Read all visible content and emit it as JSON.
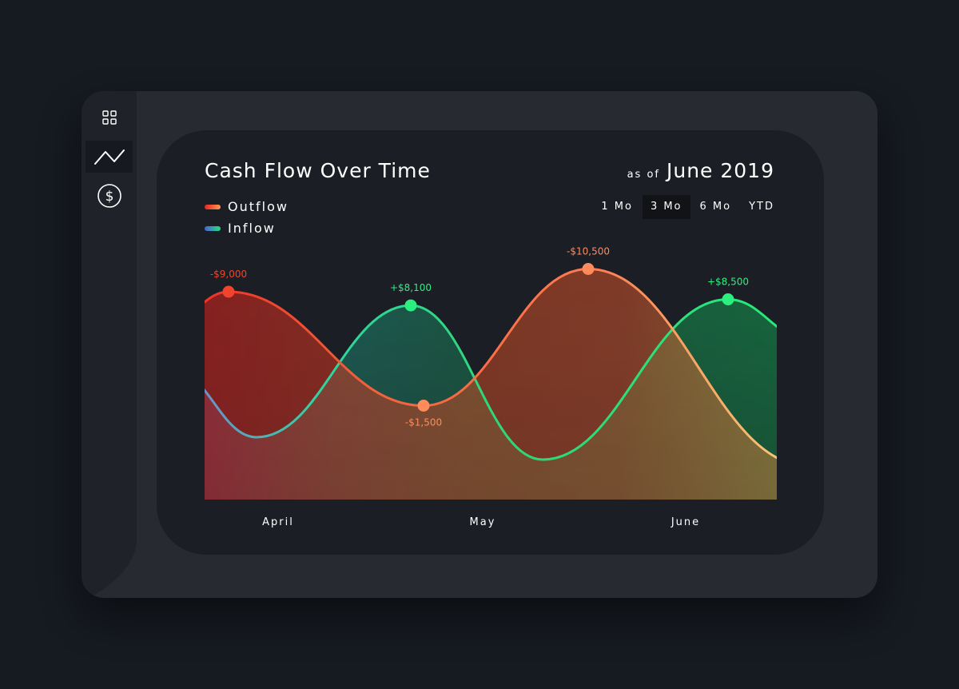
{
  "nav": {
    "items": [
      {
        "name": "dashboard-icon",
        "active": false
      },
      {
        "name": "trend-chart-icon",
        "active": true
      },
      {
        "name": "dollar-icon",
        "active": false
      }
    ]
  },
  "header": {
    "title": "Cash Flow Over Time",
    "as_of_label": "as of",
    "as_of_date": "June 2019"
  },
  "legend": {
    "outflow": "Outflow",
    "inflow": "Inflow"
  },
  "ranges": {
    "items": [
      "1 Mo",
      "3 Mo",
      "6 Mo",
      "YTD"
    ],
    "selected": "3 Mo"
  },
  "colors": {
    "outflow": "#f0462e",
    "outflow_end": "#ff7a52",
    "inflow": "#21e67f",
    "inflow_start": "#7a73c8",
    "label_red": "#f0452c",
    "label_orange": "#ff8a5c",
    "label_green": "#2bf07f"
  },
  "chart_data": {
    "type": "area",
    "categories": [
      "April",
      "May",
      "June"
    ],
    "series": [
      {
        "name": "Outflow",
        "points": [
          {
            "x": "April",
            "value": -9000,
            "label": "-$9,000"
          },
          {
            "x": "May",
            "value": -1500,
            "label": "-$1,500"
          },
          {
            "x": "June",
            "value": -10500,
            "label": "-$10,500"
          }
        ]
      },
      {
        "name": "Inflow",
        "points": [
          {
            "x": "May",
            "value": 8100,
            "label": "+$8,100"
          },
          {
            "x": "June",
            "value": 8500,
            "label": "+$8,500"
          }
        ]
      }
    ],
    "grid": false,
    "legend_position": "top-left"
  }
}
